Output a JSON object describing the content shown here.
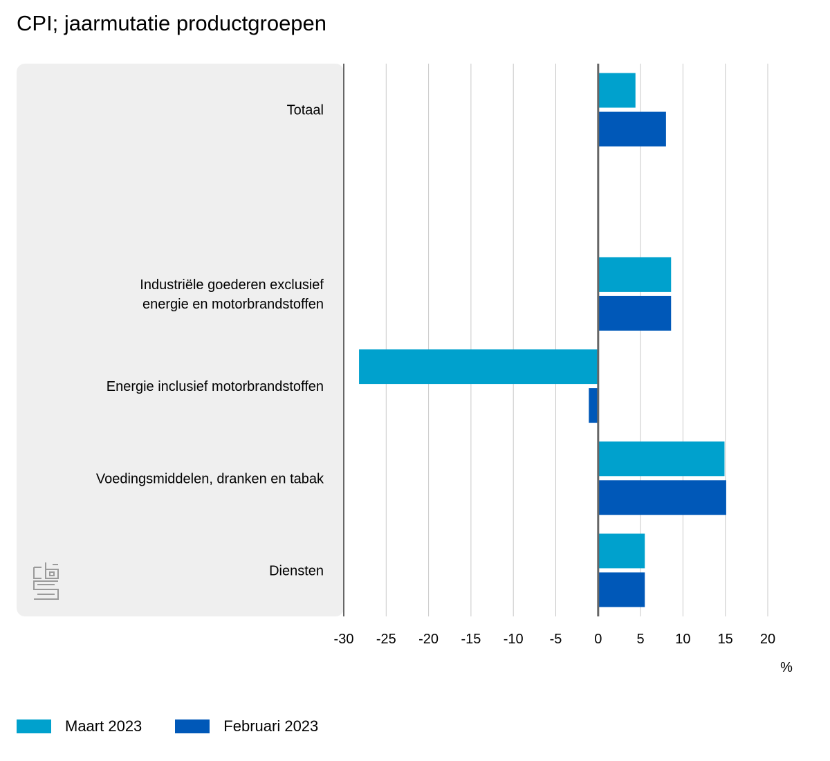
{
  "title": "CPI; jaarmutatie productgroepen",
  "chart_data": {
    "type": "bar",
    "orientation": "horizontal",
    "categories": [
      {
        "lines": [
          "Totaal"
        ]
      },
      {
        "lines": []
      },
      {
        "lines": [
          "Industriële goederen exclusief",
          "energie en motorbrandstoffen"
        ]
      },
      {
        "lines": [
          "Energie inclusief motorbrandstoffen"
        ]
      },
      {
        "lines": [
          "Voedingsmiddelen, dranken en tabak"
        ]
      },
      {
        "lines": [
          "Diensten"
        ]
      }
    ],
    "series": [
      {
        "name": "Maart 2023",
        "color": "#00a1cd",
        "values": [
          4.4,
          null,
          8.6,
          -28.2,
          14.9,
          5.5
        ]
      },
      {
        "name": "Februari 2023",
        "color": "#0058b8",
        "values": [
          8.0,
          null,
          8.6,
          -1.1,
          15.1,
          5.5
        ]
      }
    ],
    "xlim": [
      -30,
      20
    ],
    "xticks": [
      -30,
      -25,
      -20,
      -15,
      -10,
      -5,
      0,
      5,
      10,
      15,
      20
    ],
    "xlabel": "%",
    "grid": true,
    "legend_position": "bottom-left"
  },
  "colors": {
    "panel_background": "#efefef",
    "gridline": "#c8c8c8",
    "axis": "#666666",
    "logo": "#9a9a9a"
  },
  "logo_icon": "cbs-logo-icon"
}
